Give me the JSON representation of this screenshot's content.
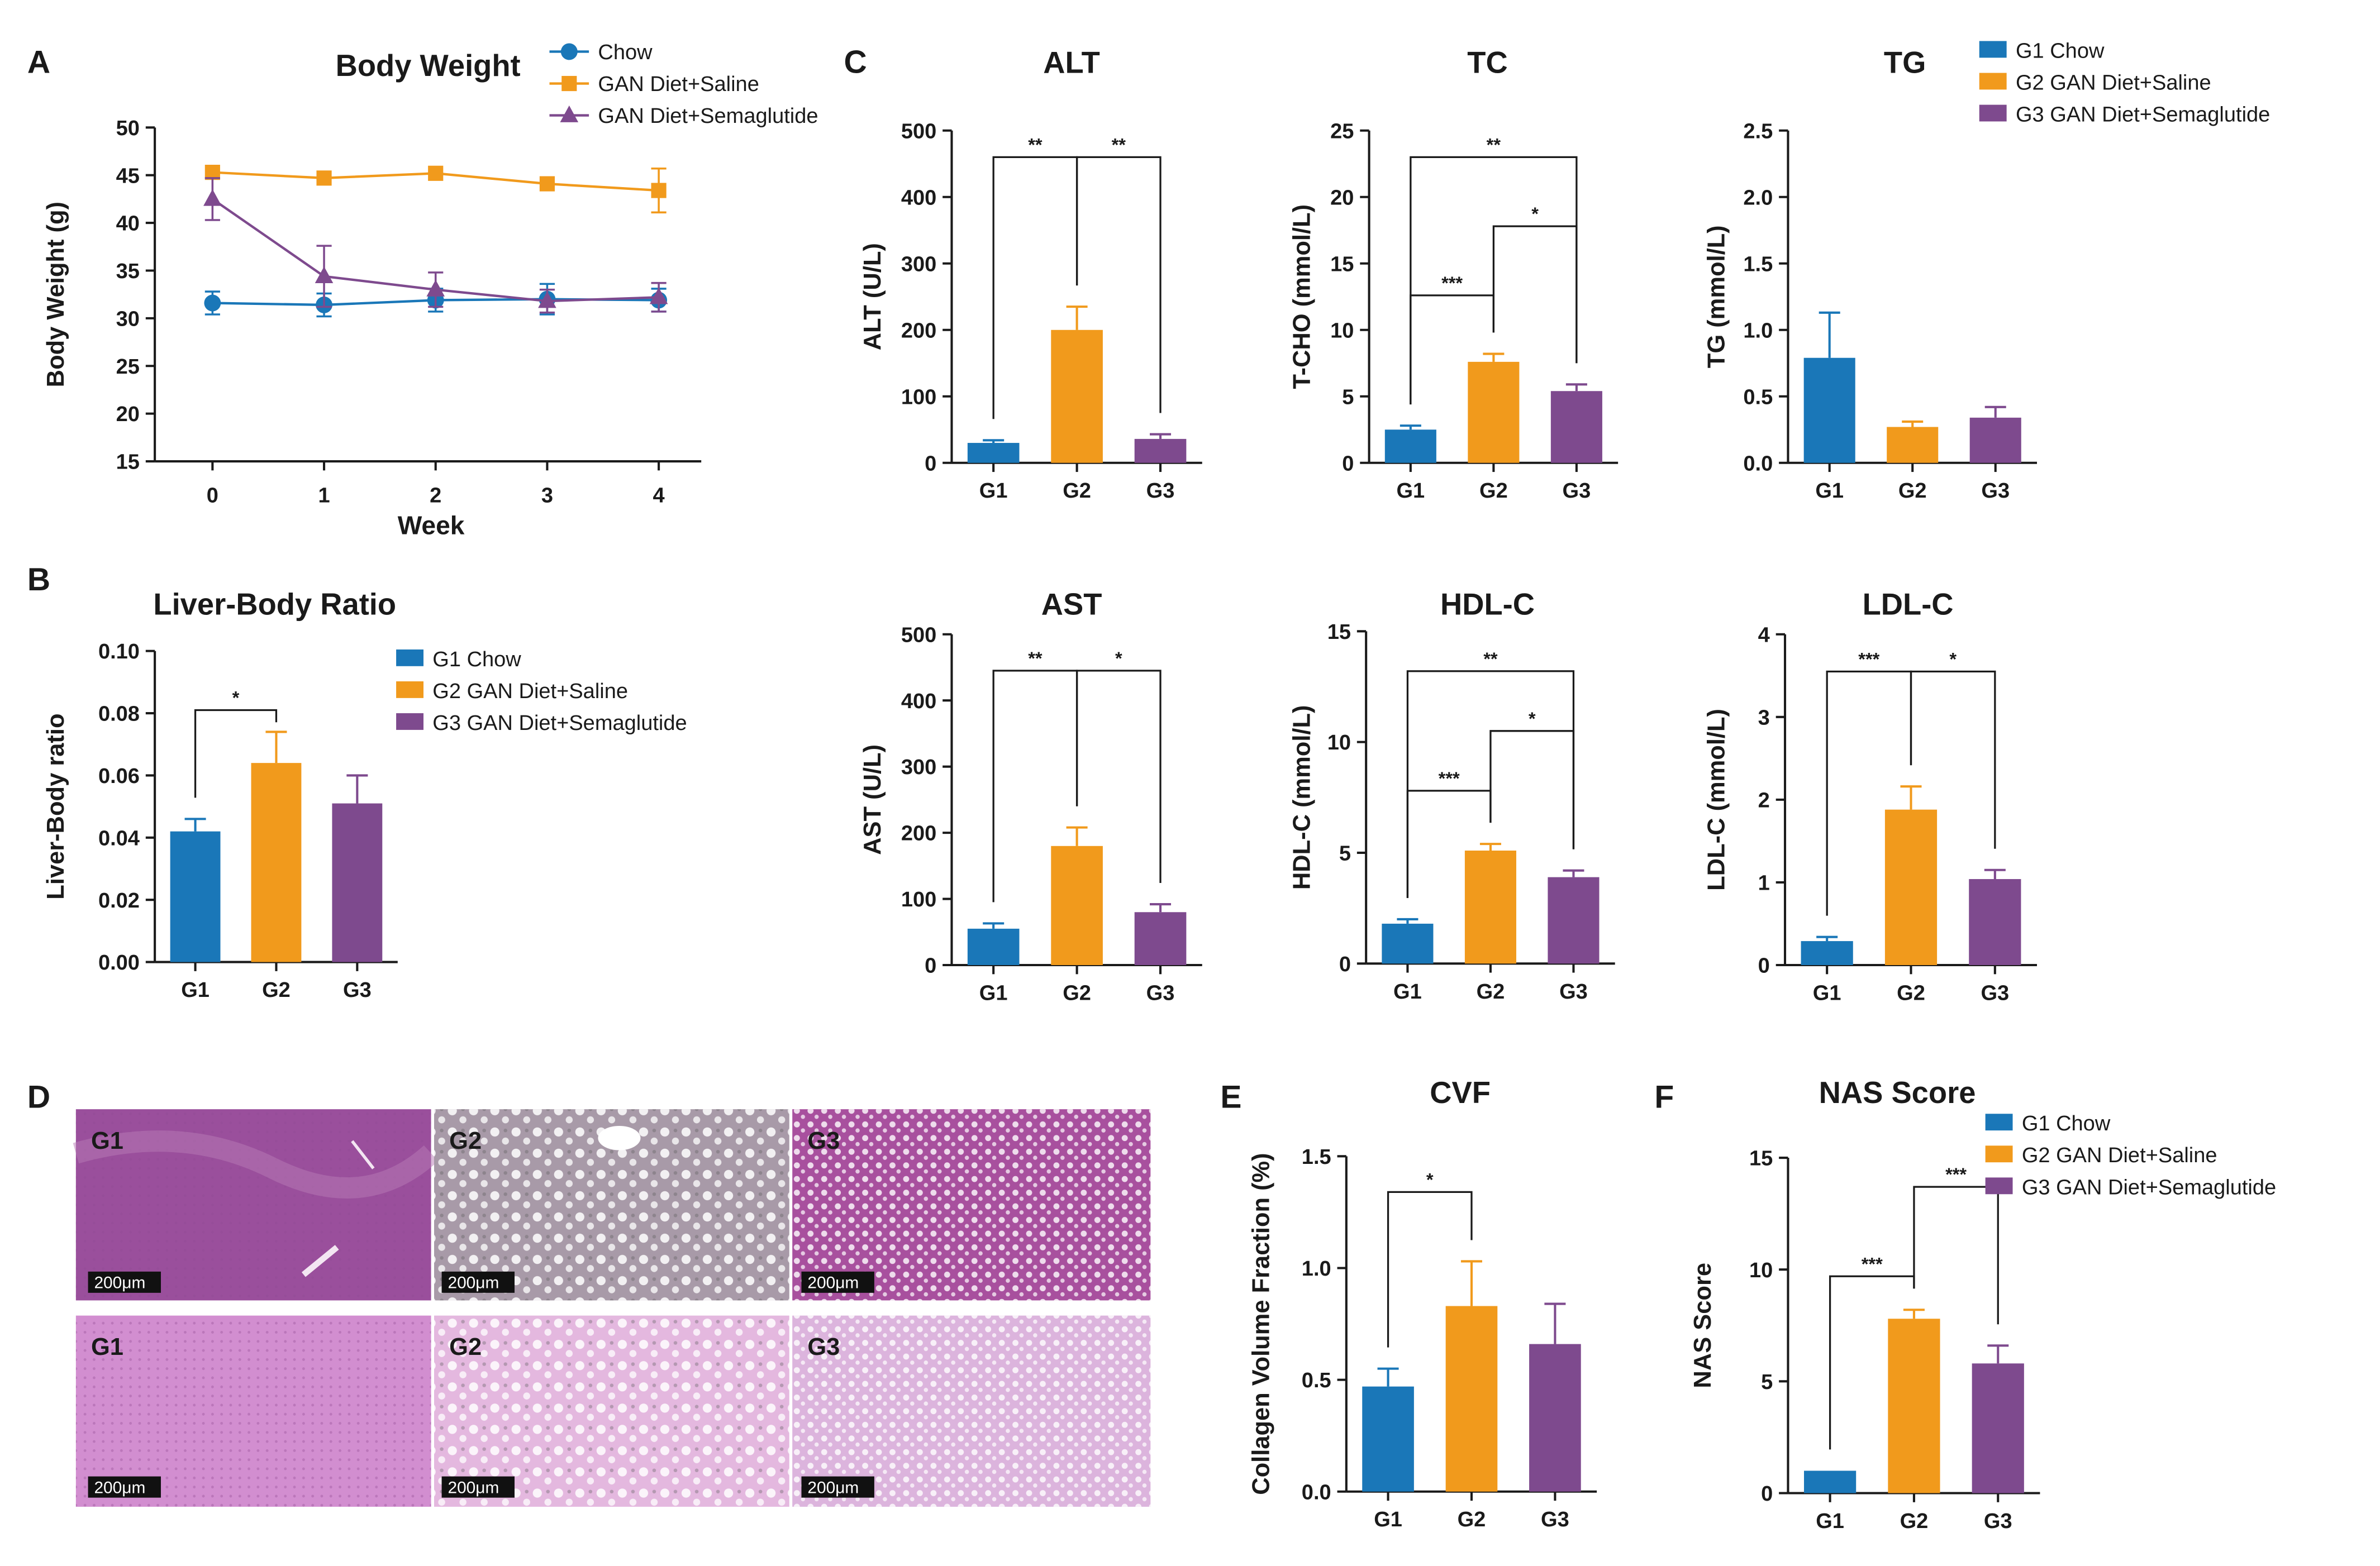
{
  "colors": {
    "g1": "#1a77b8",
    "g2": "#f19a1c",
    "g3": "#7e4a8e",
    "axis": "#1a1a1a"
  },
  "panel_labels": [
    "A",
    "B",
    "C",
    "D",
    "E",
    "F"
  ],
  "legend_groups": [
    "G1 Chow",
    "G2 GAN Diet+Saline",
    "G3 GAN Diet+Semaglutide"
  ],
  "chart_data": [
    {
      "id": "A",
      "type": "line",
      "title": "Body Weight",
      "xlabel": "Week",
      "ylabel": "Body Weight (g)",
      "x": [
        0,
        1,
        2,
        3,
        4
      ],
      "xticks": [
        "0",
        "1",
        "2",
        "3",
        "4"
      ],
      "ylim": [
        15,
        50
      ],
      "yticks": [
        "15",
        "20",
        "25",
        "30",
        "35",
        "40",
        "45",
        "50"
      ],
      "series": [
        {
          "name": "Chow",
          "marker": "circle",
          "values": [
            31.6,
            31.4,
            31.9,
            32.0,
            31.9
          ],
          "errors": [
            1.2,
            1.2,
            1.2,
            1.6,
            1.2
          ]
        },
        {
          "name": "GAN Diet+Saline",
          "marker": "square",
          "values": [
            45.3,
            44.7,
            45.2,
            44.1,
            43.4
          ],
          "errors": [
            0.0,
            0.0,
            0.0,
            0.0,
            2.3
          ]
        },
        {
          "name": "GAN Diet+Semaglutide",
          "marker": "triangle",
          "values": [
            42.5,
            34.4,
            33.0,
            31.8,
            32.2
          ],
          "errors": [
            2.2,
            3.2,
            1.8,
            1.2,
            1.5
          ]
        }
      ]
    },
    {
      "id": "B",
      "type": "bar",
      "title": "Liver-Body Ratio",
      "ylabel": "Liver-Body ratio",
      "categories": [
        "G1",
        "G2",
        "G3"
      ],
      "values": [
        0.042,
        0.064,
        0.051
      ],
      "errors": [
        0.004,
        0.01,
        0.009
      ],
      "ylim": [
        0,
        0.1
      ],
      "yticks": [
        "0.00",
        "0.02",
        "0.04",
        "0.06",
        "0.08",
        "0.10"
      ],
      "sig": [
        {
          "from": 0,
          "to": 1,
          "label": "*",
          "level": 0.081
        }
      ]
    },
    {
      "id": "ALT",
      "type": "bar",
      "title": "ALT",
      "ylabel": "ALT (U/L)",
      "categories": [
        "G1",
        "G2",
        "G3"
      ],
      "values": [
        30,
        200,
        36
      ],
      "errors": [
        4,
        35,
        7
      ],
      "ylim": [
        0,
        500
      ],
      "yticks": [
        "0",
        "100",
        "200",
        "300",
        "400",
        "500"
      ],
      "sig": [
        {
          "from": 0,
          "to": 1,
          "label": "**",
          "level": 460
        },
        {
          "from": 1,
          "to": 2,
          "label": "**",
          "level": 460
        }
      ]
    },
    {
      "id": "TC",
      "type": "bar",
      "title": "TC",
      "ylabel": "T-CHO (mmol/L)",
      "categories": [
        "G1",
        "G2",
        "G3"
      ],
      "values": [
        2.5,
        7.6,
        5.4
      ],
      "errors": [
        0.3,
        0.6,
        0.5
      ],
      "ylim": [
        0,
        25
      ],
      "yticks": [
        "0",
        "5",
        "10",
        "15",
        "20",
        "25"
      ],
      "sig": [
        {
          "from": 0,
          "to": 1,
          "label": "***",
          "level": 12.6
        },
        {
          "from": 1,
          "to": 2,
          "label": "*",
          "level": 17.8
        },
        {
          "from": 0,
          "to": 2,
          "label": "**",
          "level": 23.0
        }
      ]
    },
    {
      "id": "TG",
      "type": "bar",
      "title": "TG",
      "ylabel": "TG (mmol/L)",
      "categories": [
        "G1",
        "G2",
        "G3"
      ],
      "values": [
        0.79,
        0.27,
        0.34
      ],
      "errors": [
        0.34,
        0.04,
        0.08
      ],
      "ylim": [
        0,
        2.5
      ],
      "yticks": [
        "0.0",
        "0.5",
        "1.0",
        "1.5",
        "2.0",
        "2.5"
      ],
      "sig": []
    },
    {
      "id": "AST",
      "type": "bar",
      "title": "AST",
      "ylabel": "AST (U/L)",
      "categories": [
        "G1",
        "G2",
        "G3"
      ],
      "values": [
        55,
        180,
        80
      ],
      "errors": [
        8,
        28,
        12
      ],
      "ylim": [
        0,
        500
      ],
      "yticks": [
        "0",
        "100",
        "200",
        "300",
        "400",
        "500"
      ],
      "sig": [
        {
          "from": 0,
          "to": 1,
          "label": "**",
          "level": 445
        },
        {
          "from": 1,
          "to": 2,
          "label": "*",
          "level": 445
        }
      ]
    },
    {
      "id": "HDLC",
      "type": "bar",
      "title": "HDL-C",
      "ylabel": "HDL-C (mmol/L)",
      "categories": [
        "G1",
        "G2",
        "G3"
      ],
      "values": [
        1.8,
        5.1,
        3.9
      ],
      "errors": [
        0.2,
        0.3,
        0.3
      ],
      "ylim": [
        0,
        15
      ],
      "yticks": [
        "0",
        "5",
        "10",
        "15"
      ],
      "sig": [
        {
          "from": 0,
          "to": 1,
          "label": "***",
          "level": 7.8
        },
        {
          "from": 1,
          "to": 2,
          "label": "*",
          "level": 10.5
        },
        {
          "from": 0,
          "to": 2,
          "label": "**",
          "level": 13.2
        }
      ]
    },
    {
      "id": "LDLC",
      "type": "bar",
      "title": "LDL-C",
      "ylabel": "LDL-C (mmol/L)",
      "categories": [
        "G1",
        "G2",
        "G3"
      ],
      "values": [
        0.29,
        1.88,
        1.04
      ],
      "errors": [
        0.05,
        0.28,
        0.11
      ],
      "ylim": [
        0,
        4
      ],
      "yticks": [
        "0",
        "1",
        "2",
        "3",
        "4"
      ],
      "sig": [
        {
          "from": 0,
          "to": 1,
          "label": "***",
          "level": 3.55
        },
        {
          "from": 1,
          "to": 2,
          "label": "*",
          "level": 3.55
        }
      ]
    },
    {
      "id": "CVF",
      "type": "bar",
      "title": "CVF",
      "ylabel": "Collagen Volume Fraction (%)",
      "categories": [
        "G1",
        "G2",
        "G3"
      ],
      "values": [
        0.47,
        0.83,
        0.66
      ],
      "errors": [
        0.08,
        0.2,
        0.18
      ],
      "ylim": [
        0,
        1.5
      ],
      "yticks": [
        "0.0",
        "0.5",
        "1.0",
        "1.5"
      ],
      "sig": [
        {
          "from": 0,
          "to": 1,
          "label": "*",
          "level": 1.34
        }
      ]
    },
    {
      "id": "NAS",
      "type": "bar",
      "title": "NAS Score",
      "ylabel": "NAS Score",
      "categories": [
        "G1",
        "G2",
        "G3"
      ],
      "values": [
        1.0,
        7.8,
        5.8
      ],
      "errors": [
        0,
        0.4,
        0.8
      ],
      "ylim": [
        0,
        15
      ],
      "yticks": [
        "0",
        "5",
        "10",
        "15"
      ],
      "sig": [
        {
          "from": 0,
          "to": 1,
          "label": "***",
          "level": 9.7
        },
        {
          "from": 1,
          "to": 2,
          "label": "***",
          "level": 13.7
        }
      ]
    }
  ],
  "histology": {
    "labels": [
      "G1",
      "G2",
      "G3",
      "G1",
      "G2",
      "G3"
    ],
    "scale_bar": "200μm"
  }
}
